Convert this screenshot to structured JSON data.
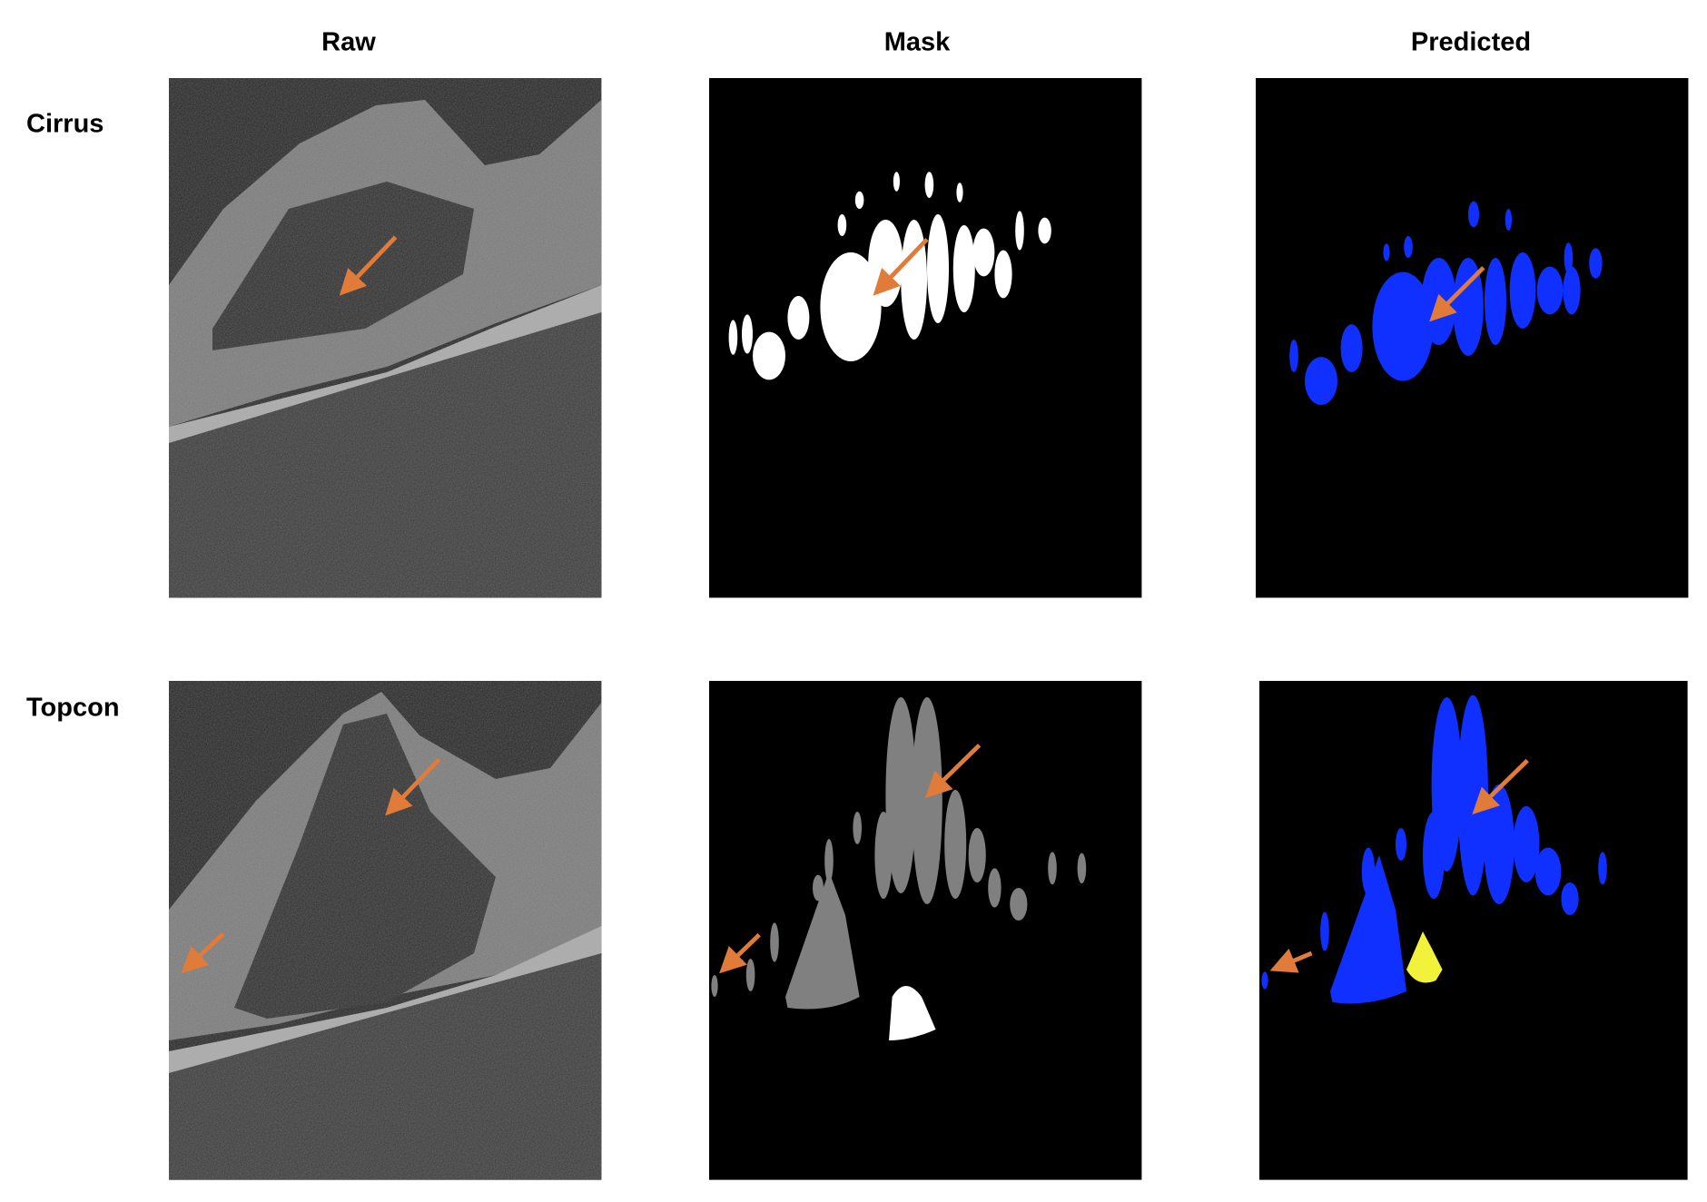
{
  "columns": [
    "Raw",
    "Mask",
    "Predicted"
  ],
  "rows": [
    "Cirrus",
    "Topcon"
  ]
}
